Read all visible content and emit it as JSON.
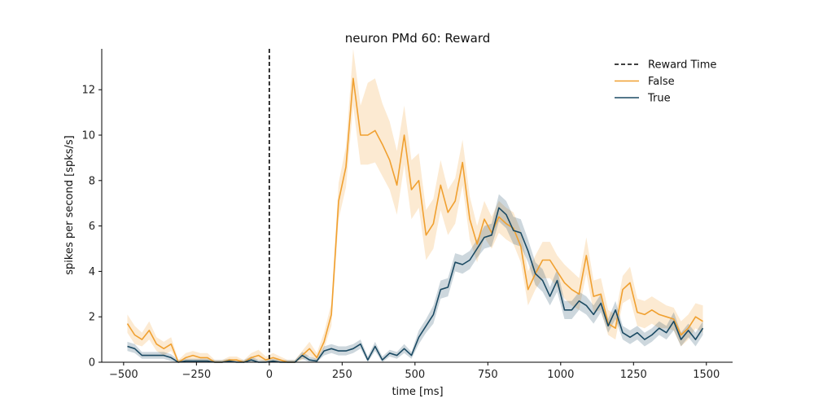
{
  "chart_data": {
    "type": "line",
    "title": "neuron PMd 60: Reward",
    "xlabel": "time [ms]",
    "ylabel": "spikes per second [spks/s]",
    "xlim": [
      -575,
      1590
    ],
    "ylim": [
      0,
      13.8
    ],
    "xticks": [
      -500,
      -250,
      0,
      250,
      500,
      750,
      1000,
      1250,
      1500
    ],
    "xtick_labels": [
      "−500",
      "−250",
      "0",
      "250",
      "500",
      "750",
      "1000",
      "1250",
      "1500"
    ],
    "yticks": [
      0,
      2,
      4,
      6,
      8,
      10,
      12
    ],
    "ytick_labels": [
      "0",
      "2",
      "4",
      "6",
      "8",
      "10",
      "12"
    ],
    "grid": false,
    "legend_position": "top-right",
    "event_line": {
      "x": 0,
      "name": "Reward Time",
      "color": "#000000",
      "style": "dashed"
    },
    "x": [
      -487,
      -462,
      -437,
      -412,
      -387,
      -362,
      -337,
      -312,
      -287,
      -262,
      -237,
      -212,
      -187,
      -162,
      -137,
      -112,
      -87,
      -62,
      -37,
      -12,
      13,
      38,
      63,
      88,
      113,
      138,
      163,
      188,
      213,
      238,
      263,
      288,
      313,
      338,
      363,
      388,
      413,
      438,
      463,
      488,
      513,
      538,
      563,
      588,
      613,
      638,
      663,
      688,
      713,
      738,
      763,
      788,
      813,
      838,
      863,
      888,
      913,
      938,
      963,
      988,
      1013,
      1038,
      1063,
      1088,
      1113,
      1138,
      1163,
      1188,
      1213,
      1238,
      1263,
      1288,
      1313,
      1338,
      1363,
      1388,
      1413,
      1438,
      1463,
      1488
    ],
    "series": [
      {
        "name": "False",
        "color": "#f0a030",
        "values": [
          1.7,
          1.2,
          1.0,
          1.4,
          0.8,
          0.6,
          0.8,
          0.0,
          0.2,
          0.3,
          0.2,
          0.2,
          0.0,
          0.0,
          0.1,
          0.1,
          0.0,
          0.2,
          0.3,
          0.1,
          0.2,
          0.1,
          0.0,
          0.0,
          0.3,
          0.6,
          0.2,
          0.9,
          2.1,
          7.1,
          8.6,
          12.5,
          10.0,
          10.0,
          10.2,
          9.6,
          8.9,
          7.8,
          10.0,
          7.6,
          8.0,
          5.6,
          6.1,
          7.8,
          6.6,
          7.1,
          8.8,
          6.3,
          5.2,
          6.3,
          5.7,
          6.4,
          6.1,
          5.9,
          5.1,
          3.2,
          3.9,
          4.5,
          4.5,
          4.0,
          3.5,
          3.2,
          3.0,
          4.7,
          2.9,
          3.0,
          1.7,
          1.5,
          3.2,
          3.5,
          2.2,
          2.1,
          2.3,
          2.1,
          2.0,
          1.9,
          1.2,
          1.5,
          2.0,
          1.8
        ],
        "lower": [
          1.3,
          0.8,
          0.7,
          1.0,
          0.5,
          0.3,
          0.5,
          0.0,
          0.05,
          0.1,
          0.05,
          0.05,
          0.0,
          0.0,
          0.0,
          0.0,
          0.0,
          0.05,
          0.1,
          0.0,
          0.05,
          0.0,
          0.0,
          0.0,
          0.1,
          0.3,
          0.05,
          0.6,
          1.6,
          6.3,
          7.7,
          11.3,
          8.7,
          8.7,
          8.8,
          8.2,
          7.6,
          6.5,
          8.7,
          6.3,
          6.8,
          4.5,
          5.0,
          6.7,
          5.6,
          6.1,
          7.8,
          5.4,
          4.4,
          5.5,
          5.0,
          5.7,
          5.4,
          5.2,
          4.4,
          2.5,
          3.2,
          3.7,
          3.7,
          3.3,
          2.8,
          2.5,
          2.3,
          3.9,
          2.2,
          2.3,
          1.2,
          1.0,
          2.6,
          2.8,
          1.6,
          1.5,
          1.7,
          1.5,
          1.5,
          1.4,
          0.7,
          1.0,
          1.5,
          1.3
        ],
        "upper": [
          2.1,
          1.6,
          1.3,
          1.8,
          1.1,
          0.9,
          1.1,
          0.1,
          0.4,
          0.5,
          0.4,
          0.4,
          0.1,
          0.1,
          0.25,
          0.25,
          0.1,
          0.4,
          0.55,
          0.25,
          0.4,
          0.25,
          0.1,
          0.1,
          0.5,
          0.9,
          0.4,
          1.3,
          2.6,
          7.9,
          9.5,
          13.8,
          11.3,
          12.3,
          12.5,
          11.4,
          10.6,
          9.3,
          11.3,
          8.9,
          9.2,
          6.7,
          7.2,
          8.9,
          7.6,
          8.1,
          9.8,
          7.3,
          6.0,
          7.1,
          6.4,
          7.1,
          6.8,
          6.6,
          5.8,
          4.0,
          4.7,
          5.3,
          5.3,
          4.7,
          4.3,
          4.0,
          3.7,
          5.5,
          3.6,
          3.7,
          2.3,
          2.1,
          3.8,
          4.2,
          2.8,
          2.7,
          2.9,
          2.7,
          2.5,
          2.4,
          1.8,
          2.1,
          2.6,
          2.5
        ]
      },
      {
        "name": "True",
        "color": "#1b4a63",
        "values": [
          0.7,
          0.6,
          0.3,
          0.3,
          0.3,
          0.3,
          0.2,
          0.0,
          0.05,
          0.05,
          0.05,
          0.05,
          0.0,
          0.0,
          0.05,
          0.0,
          0.0,
          0.1,
          0.0,
          0.0,
          0.05,
          0.0,
          0.0,
          0.0,
          0.3,
          0.1,
          0.05,
          0.5,
          0.6,
          0.5,
          0.5,
          0.6,
          0.8,
          0.1,
          0.7,
          0.1,
          0.4,
          0.3,
          0.6,
          0.3,
          1.1,
          1.6,
          2.1,
          3.2,
          3.3,
          4.4,
          4.3,
          4.5,
          5.0,
          5.5,
          5.6,
          6.8,
          6.5,
          5.8,
          5.7,
          4.9,
          3.9,
          3.6,
          2.9,
          3.6,
          2.3,
          2.3,
          2.7,
          2.5,
          2.1,
          2.6,
          1.6,
          2.3,
          1.3,
          1.1,
          1.3,
          1.0,
          1.2,
          1.5,
          1.3,
          1.8,
          1.0,
          1.4,
          1.0,
          1.5
        ],
        "lower": [
          0.5,
          0.4,
          0.15,
          0.15,
          0.15,
          0.15,
          0.05,
          0.0,
          0.0,
          0.0,
          0.0,
          0.0,
          0.0,
          0.0,
          0.0,
          0.0,
          0.0,
          0.0,
          0.0,
          0.0,
          0.0,
          0.0,
          0.0,
          0.0,
          0.15,
          0.0,
          0.0,
          0.3,
          0.4,
          0.3,
          0.3,
          0.4,
          0.6,
          0.0,
          0.5,
          0.0,
          0.25,
          0.15,
          0.4,
          0.15,
          0.8,
          1.3,
          1.7,
          2.8,
          2.9,
          4.0,
          3.9,
          4.1,
          4.6,
          5.0,
          5.1,
          6.2,
          5.9,
          5.2,
          5.1,
          4.4,
          3.4,
          3.1,
          2.5,
          3.1,
          1.9,
          1.9,
          2.3,
          2.1,
          1.7,
          2.2,
          1.3,
          1.9,
          1.0,
          0.8,
          1.0,
          0.7,
          0.9,
          1.2,
          1.0,
          1.4,
          0.7,
          1.1,
          0.7,
          1.2
        ],
        "upper": [
          0.9,
          0.8,
          0.45,
          0.45,
          0.45,
          0.45,
          0.35,
          0.1,
          0.15,
          0.15,
          0.15,
          0.15,
          0.1,
          0.1,
          0.15,
          0.1,
          0.1,
          0.25,
          0.1,
          0.1,
          0.15,
          0.1,
          0.1,
          0.1,
          0.45,
          0.25,
          0.15,
          0.7,
          0.8,
          0.7,
          0.7,
          0.8,
          1.0,
          0.25,
          0.9,
          0.25,
          0.55,
          0.45,
          0.8,
          0.45,
          1.4,
          1.9,
          2.5,
          3.6,
          3.7,
          4.8,
          4.7,
          4.9,
          5.4,
          6.0,
          6.1,
          7.4,
          7.1,
          6.4,
          6.3,
          5.4,
          4.4,
          4.1,
          3.3,
          4.1,
          2.7,
          2.7,
          3.1,
          2.9,
          2.5,
          3.0,
          1.9,
          2.7,
          1.6,
          1.4,
          1.6,
          1.3,
          1.5,
          1.8,
          1.6,
          2.2,
          1.3,
          1.7,
          1.3,
          1.8
        ]
      }
    ]
  }
}
